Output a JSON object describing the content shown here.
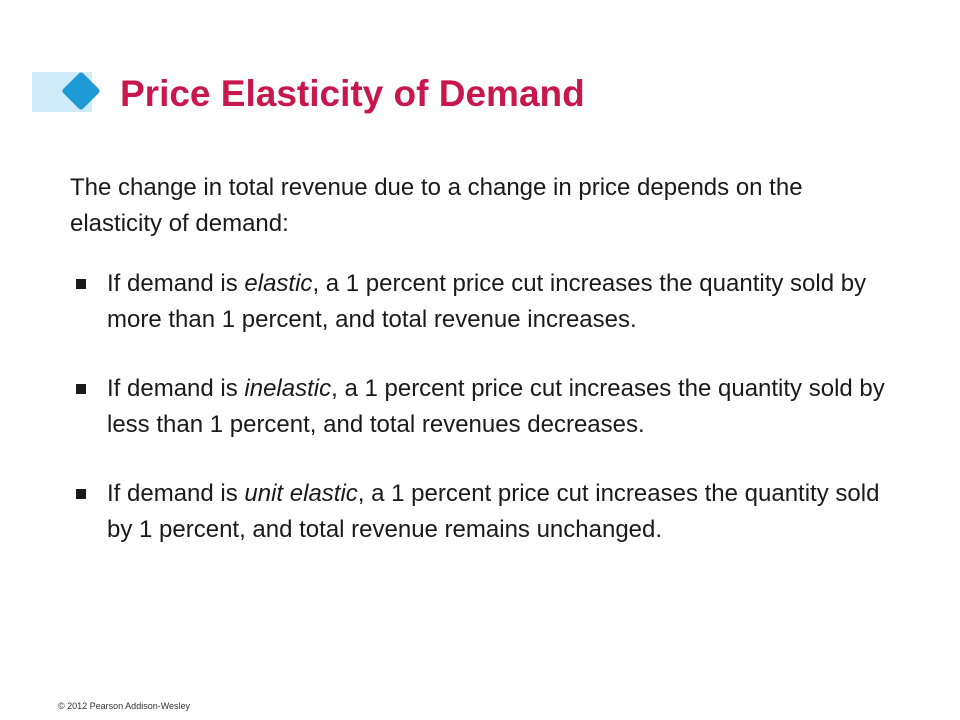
{
  "slide": {
    "title": "Price Elasticity of Demand",
    "intro": "The change in total revenue due to a change in price depends on the elasticity of demand:",
    "bullets": [
      {
        "pre": "If demand is ",
        "emph": "elastic",
        "post": ", a 1 percent price cut increases the quantity sold by more than 1 percent, and total revenue increases."
      },
      {
        "pre": "If demand is ",
        "emph": "inelastic",
        "post": ", a 1 percent price cut increases the quantity sold by less than 1 percent, and total revenues decreases."
      },
      {
        "pre": "If demand is ",
        "emph": "unit elastic",
        "post": ", a 1 percent price cut increases the quantity sold by 1 percent, and total revenue remains unchanged."
      }
    ],
    "footer": "© 2012 Pearson Addison-Wesley"
  },
  "colors": {
    "title": "#c8174c",
    "accent_diamond": "#1e9ad6",
    "accent_bar": "#cfeaf8"
  },
  "icons": {
    "title_accent": "diamond-icon",
    "bullet": "square-bullet-icon"
  }
}
